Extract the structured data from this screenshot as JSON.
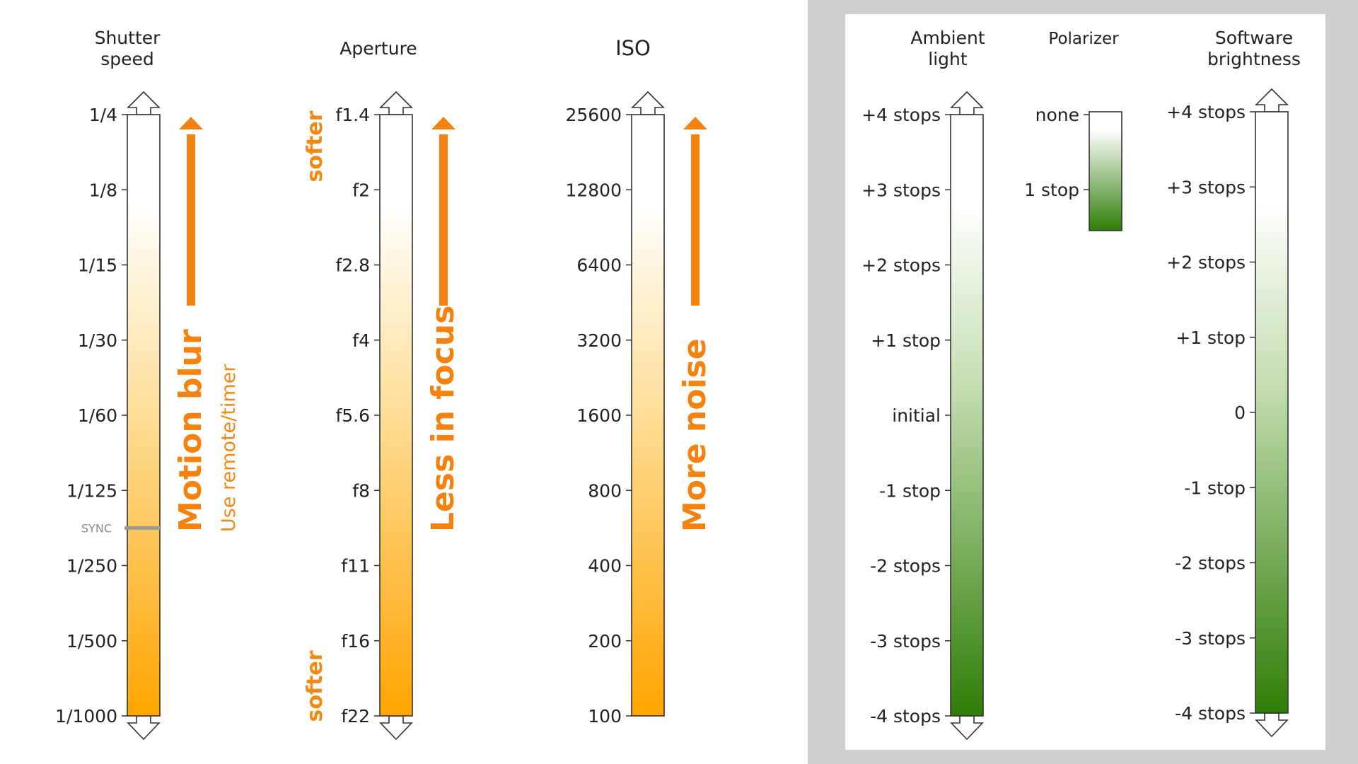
{
  "columns": [
    {
      "key": "shutter",
      "title_lines": [
        "Shutter",
        "speed"
      ],
      "ticks": [
        "1/4",
        "1/8",
        "1/15",
        "1/30",
        "1/60",
        "1/125",
        "1/250",
        "1/500",
        "1/1000"
      ],
      "gradient": "orange",
      "marker": {
        "label": "SYNC",
        "position_stops": 5.5
      },
      "arrow_label": "Motion blur",
      "secondary_label": "Use remote/timer",
      "top_arrow": true,
      "bottom_arrow": true
    },
    {
      "key": "aperture",
      "title_lines": [
        "Aperture"
      ],
      "ticks": [
        "f1.4",
        "f2",
        "f2.8",
        "f4",
        "f5.6",
        "f8",
        "f11",
        "f16",
        "f22"
      ],
      "gradient": "orange",
      "side_labels": [
        {
          "text": "softer",
          "end": "top"
        },
        {
          "text": "softer",
          "end": "bottom"
        }
      ],
      "arrow_label": "Less in focus",
      "top_arrow": true,
      "bottom_arrow": true
    },
    {
      "key": "iso",
      "title_lines": [
        "ISO"
      ],
      "ticks": [
        "25600",
        "12800",
        "6400",
        "3200",
        "1600",
        "800",
        "400",
        "200",
        "100"
      ],
      "gradient": "orange",
      "arrow_label": "More noise",
      "top_arrow": true,
      "bottom_arrow": false
    },
    {
      "key": "ambient",
      "title_lines": [
        "Ambient",
        "light"
      ],
      "ticks": [
        "+4 stops",
        "+3 stops",
        "+2 stops",
        "+1 stop",
        "initial",
        "-1 stop",
        "-2 stops",
        "-3 stops",
        "-4 stops"
      ],
      "gradient": "green",
      "top_arrow": true,
      "bottom_arrow": true
    },
    {
      "key": "polarizer",
      "title_lines": [
        "Polarizer"
      ],
      "ticks": [
        "none",
        "1 stop"
      ],
      "gradient": "green",
      "top_arrow": false,
      "bottom_arrow": false
    },
    {
      "key": "software",
      "title_lines": [
        "Software",
        "brightness"
      ],
      "ticks": [
        "+4 stops",
        "+3 stops",
        "+2 stops",
        "+1 stop",
        "0",
        "-1 stop",
        "-2 stops",
        "-3 stops",
        "-4 stops"
      ],
      "gradient": "green",
      "top_arrow": true,
      "bottom_arrow": true
    }
  ],
  "colors": {
    "orange_arrow": "#f5820f",
    "orange_text": "#f08a14",
    "orange_top": "#ffffff",
    "orange_bottom": "#ffa500",
    "green_top": "#ffffff",
    "green_bottom": "#2f7d07",
    "marker": "#999999",
    "panel_grey": "#cfcfcf"
  }
}
